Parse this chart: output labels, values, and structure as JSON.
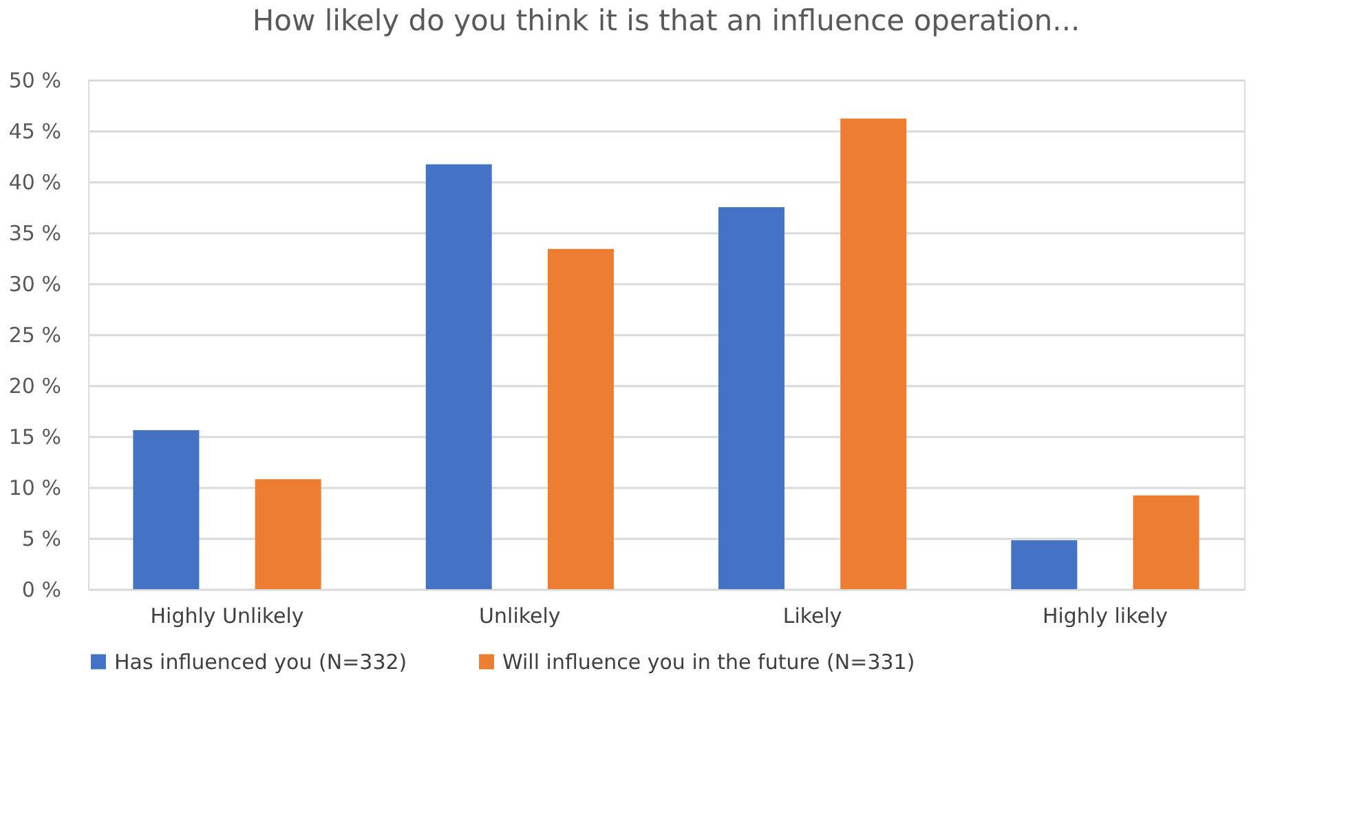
{
  "chart_data": {
    "type": "bar",
    "title": "How likely do you think it is that an influence operation...",
    "categories": [
      "Highly Unlikely",
      "Unlikely",
      "Likely",
      "Highly likely"
    ],
    "series": [
      {
        "name": "Has influenced you (N=332)",
        "color": "#4472c4",
        "values": [
          15.6,
          41.7,
          37.5,
          4.8
        ]
      },
      {
        "name": "Will influence you in the future (N=331)",
        "color": "#ed7d31",
        "values": [
          10.8,
          33.4,
          46.2,
          9.2
        ]
      }
    ],
    "ylim": [
      0,
      50
    ],
    "yticks": [
      {
        "value": 0,
        "label": "0 %"
      },
      {
        "value": 5,
        "label": "5 %"
      },
      {
        "value": 10,
        "label": "10 %"
      },
      {
        "value": 15,
        "label": "15 %"
      },
      {
        "value": 20,
        "label": "20 %"
      },
      {
        "value": 25,
        "label": "25 %"
      },
      {
        "value": 30,
        "label": "30 %"
      },
      {
        "value": 35,
        "label": "35 %"
      },
      {
        "value": 40,
        "label": "40 %"
      },
      {
        "value": 45,
        "label": "45 %"
      },
      {
        "value": 50,
        "label": "50 %"
      }
    ],
    "grid": "y",
    "legend": "bottom"
  }
}
